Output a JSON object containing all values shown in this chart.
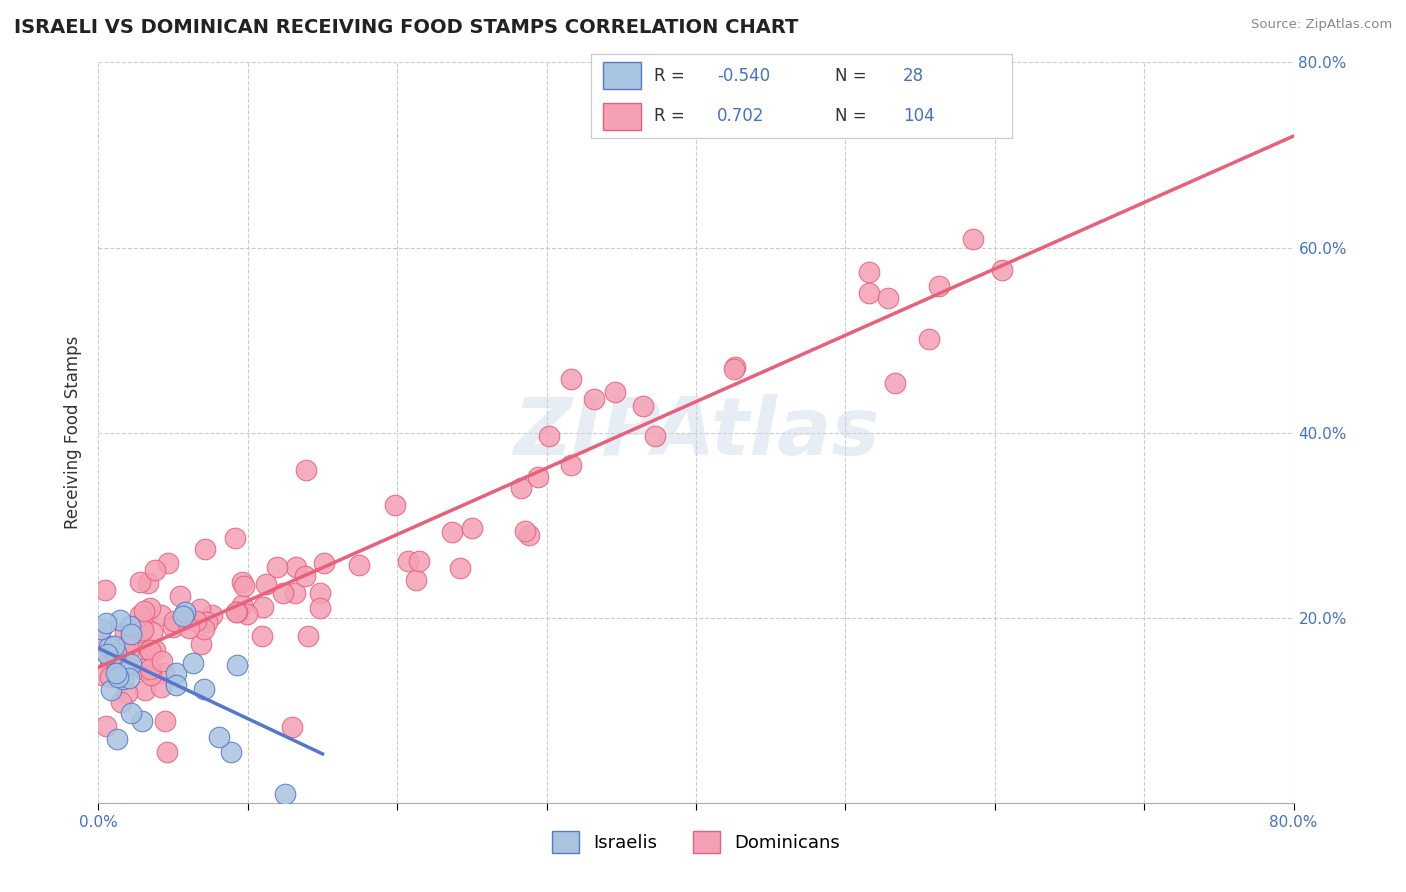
{
  "title": "ISRAELI VS DOMINICAN RECEIVING FOOD STAMPS CORRELATION CHART",
  "source": "Source: ZipAtlas.com",
  "ylabel": "Receiving Food Stamps",
  "legend_label1": "Israelis",
  "legend_label2": "Dominicans",
  "R_israeli": -0.54,
  "N_israeli": 28,
  "R_dominican": 0.702,
  "N_dominican": 104,
  "color_israeli": "#a8c4e0",
  "color_dominican": "#f4a0b5",
  "line_color_israeli": "#5577cc",
  "line_color_dominican": "#e8607a",
  "text_color_blue": "#4472c4",
  "watermark": "ZIPAtlas",
  "title_fontsize": 14,
  "tick_fontsize": 11,
  "legend_fontsize": 12
}
